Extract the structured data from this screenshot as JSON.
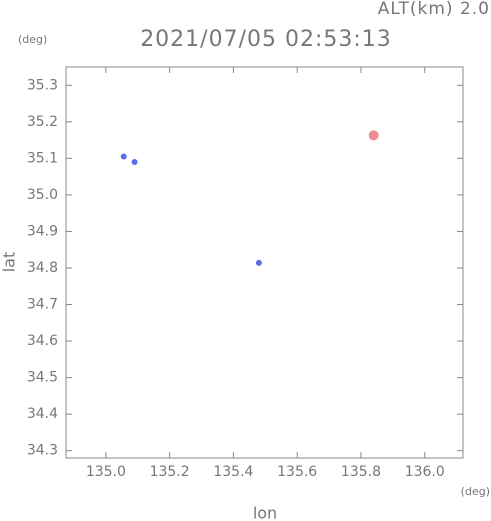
{
  "chart_data": {
    "type": "scatter",
    "title": "2021/07/05 02:53:13",
    "subtitle": "ALT(km) 2.0",
    "x_label": "lon",
    "y_label": "lat",
    "x_unit": "(deg)",
    "y_unit": "(deg)",
    "xlim": [
      134.875,
      136.12
    ],
    "ylim": [
      34.28,
      35.35
    ],
    "xticks": [
      {
        "value": 135.0,
        "label": "135.0"
      },
      135.2,
      135.4,
      135.6,
      135.8,
      {
        "value": 136.0,
        "label": "136.0"
      }
    ],
    "yticks": [
      34.3,
      34.4,
      34.5,
      34.6,
      34.7,
      34.8,
      34.9,
      {
        "value": 35.0,
        "label": "35.0"
      },
      35.1,
      35.2,
      35.3
    ],
    "series": [
      {
        "color": "#5a6ee6",
        "x": [
          135.056,
          135.09,
          135.48
        ],
        "values": [
          35.105,
          35.09,
          34.814
        ]
      },
      {
        "color": "#f08c96",
        "x": [
          135.84
        ],
        "values": [
          35.163
        ]
      }
    ]
  }
}
